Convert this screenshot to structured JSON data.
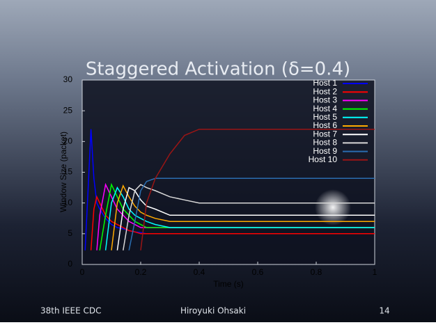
{
  "chart_data": {
    "type": "line",
    "title": "Staggered Activation (δ=0.4)",
    "x_label": "Time (s)",
    "y_label": "Window Size (packet)",
    "x": [
      0.01,
      0.02,
      0.03,
      0.04,
      0.05,
      0.06,
      0.08,
      0.1,
      0.12,
      0.14,
      0.16,
      0.18,
      0.2,
      0.22,
      0.25,
      0.3,
      0.35,
      0.4,
      0.5,
      0.6,
      0.7,
      0.8,
      0.9,
      1.0
    ],
    "series": [
      {
        "name": "Host 1",
        "color": "#0000ff",
        "values": [
          2.3,
          12,
          22,
          14,
          10,
          9,
          7.5,
          6.5,
          6,
          5.8,
          5.5,
          5.3,
          5.2,
          5,
          5,
          5,
          5,
          5,
          5,
          5,
          5,
          5,
          5,
          5
        ]
      },
      {
        "name": "Host 2",
        "color": "#ff0000",
        "values": [
          null,
          null,
          2.3,
          9,
          11,
          10,
          8,
          7,
          6.5,
          6,
          5.5,
          5.3,
          5,
          5,
          5,
          5,
          5,
          5,
          5,
          5,
          5,
          5,
          5,
          5
        ]
      },
      {
        "name": "Host 3",
        "color": "#ff00ff",
        "values": [
          null,
          null,
          null,
          null,
          2.3,
          8,
          13,
          11,
          9,
          8,
          7,
          6.5,
          6,
          6,
          6,
          6,
          6,
          6,
          6,
          6,
          6,
          6,
          6,
          6
        ]
      },
      {
        "name": "Host 4",
        "color": "#00ff00",
        "values": [
          null,
          null,
          null,
          null,
          null,
          2.3,
          8,
          13,
          11,
          9,
          8,
          7,
          6.5,
          6,
          6,
          6,
          6,
          6,
          6,
          6,
          6,
          6,
          6,
          6
        ]
      },
      {
        "name": "Host 5",
        "color": "#00ffff",
        "values": [
          null,
          null,
          null,
          null,
          null,
          null,
          2.3,
          10,
          12.5,
          11,
          9,
          8,
          7.5,
          7,
          6.5,
          6,
          6,
          6,
          6,
          6,
          6,
          6,
          6,
          6
        ]
      },
      {
        "name": "Host 6",
        "color": "#ffaa00",
        "values": [
          null,
          null,
          null,
          null,
          null,
          null,
          null,
          2.3,
          10,
          12.8,
          11,
          9.5,
          8.5,
          8,
          7.5,
          7,
          7,
          7,
          7,
          7,
          7,
          7,
          7,
          7
        ]
      },
      {
        "name": "Host 7",
        "color": "#ffffff",
        "values": [
          null,
          null,
          null,
          null,
          null,
          null,
          null,
          null,
          2.3,
          9,
          12.5,
          12,
          10.5,
          9.5,
          9,
          8,
          8,
          8,
          8,
          8,
          8,
          8,
          8,
          8
        ]
      },
      {
        "name": "Host 8",
        "color": "#d8d8d8",
        "values": [
          null,
          null,
          null,
          null,
          null,
          null,
          null,
          null,
          null,
          2.3,
          8,
          12,
          13,
          12.5,
          12,
          11,
          10.5,
          10,
          10,
          10,
          10,
          10,
          10,
          10
        ]
      },
      {
        "name": "Host 9",
        "color": "#2a6db0",
        "values": [
          null,
          null,
          null,
          null,
          null,
          null,
          null,
          null,
          null,
          null,
          2.3,
          7,
          12,
          13.5,
          14,
          14,
          14,
          14,
          14,
          14,
          14,
          14,
          14,
          14
        ]
      },
      {
        "name": "Host 10",
        "color": "#9a1515",
        "values": [
          null,
          null,
          null,
          null,
          null,
          null,
          null,
          null,
          null,
          null,
          null,
          null,
          2.3,
          10,
          14,
          18,
          21,
          22,
          22,
          22,
          22,
          22,
          22,
          22
        ]
      }
    ],
    "xlim": [
      0,
      1
    ],
    "xticks": [
      0,
      0.2,
      0.4,
      0.6,
      0.8,
      1
    ],
    "ylim": [
      0,
      30
    ],
    "yticks": [
      0,
      5,
      10,
      15,
      20,
      25,
      30
    ],
    "legend": "upper right"
  },
  "footer": {
    "left": "38th IEEE CDC",
    "center": "Hiroyuki Ohsaki",
    "right": "14"
  }
}
